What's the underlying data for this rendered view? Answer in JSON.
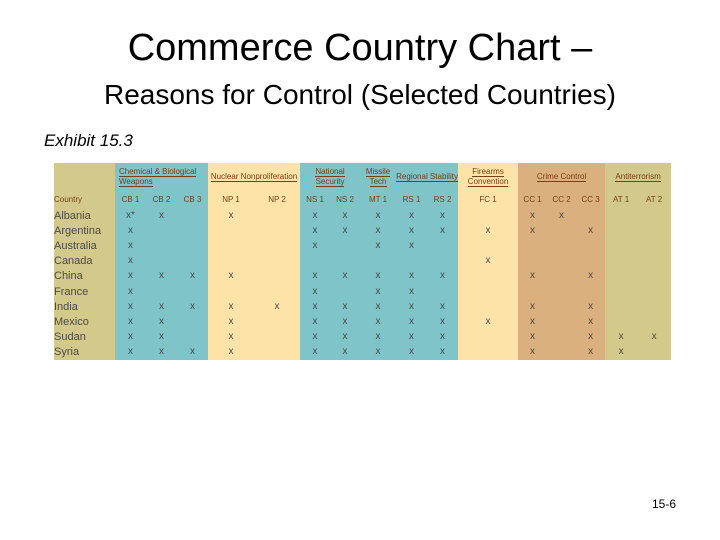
{
  "slide": {
    "title": "Commerce Country Chart –",
    "subtitle": "Reasons for Control (Selected Countries)",
    "exhibit": "Exhibit 15.3",
    "page_number": "15-6"
  },
  "table": {
    "groups": [
      {
        "label": "",
        "span": 1
      },
      {
        "label": "Chemical & Biological Weapons",
        "span": 3
      },
      {
        "label": "Nuclear Nonproliferation",
        "span": 2
      },
      {
        "label": "National Security",
        "span": 2
      },
      {
        "label": "Missile Tech",
        "span": 1
      },
      {
        "label": "Regional Stability",
        "span": 2
      },
      {
        "label": "Firearms Convention",
        "span": 1
      },
      {
        "label": "Crime Control",
        "span": 3
      },
      {
        "label": "Antiterrorism",
        "span": 2
      }
    ],
    "columns": [
      "Country",
      "CB 1",
      "CB 2",
      "CB 3",
      "NP 1",
      "NP 2",
      "NS 1",
      "NS 2",
      "MT 1",
      "RS 1",
      "RS 2",
      "FC 1",
      "CC 1",
      "CC 2",
      "CC 3",
      "AT 1",
      "AT 2"
    ],
    "rows": [
      {
        "country": "Albania",
        "cells": [
          "x*",
          "x",
          "",
          "x",
          "",
          "x",
          "x",
          "x",
          "x",
          "x",
          "",
          "x",
          "x",
          "",
          "",
          ""
        ]
      },
      {
        "country": "Argentina",
        "cells": [
          "x",
          "",
          "",
          "",
          "",
          "x",
          "x",
          "x",
          "x",
          "x",
          "x",
          "x",
          "",
          "x",
          "",
          ""
        ]
      },
      {
        "country": "Australia",
        "cells": [
          "x",
          "",
          "",
          "",
          "",
          "x",
          "",
          "x",
          "x",
          "",
          "",
          "",
          "",
          "",
          "",
          ""
        ]
      },
      {
        "country": "Canada",
        "cells": [
          "x",
          "",
          "",
          "",
          "",
          "",
          "",
          "",
          "",
          "",
          "x",
          "",
          "",
          "",
          "",
          ""
        ]
      },
      {
        "country": "China",
        "cells": [
          "x",
          "x",
          "x",
          "x",
          "",
          "x",
          "x",
          "x",
          "x",
          "x",
          "",
          "x",
          "",
          "x",
          "",
          ""
        ]
      },
      {
        "country": "France",
        "cells": [
          "x",
          "",
          "",
          "",
          "",
          "x",
          "",
          "x",
          "x",
          "",
          "",
          "",
          "",
          "",
          "",
          ""
        ]
      },
      {
        "country": "India",
        "cells": [
          "x",
          "x",
          "x",
          "x",
          "x",
          "x",
          "x",
          "x",
          "x",
          "x",
          "",
          "x",
          "",
          "x",
          "",
          ""
        ]
      },
      {
        "country": "Mexico",
        "cells": [
          "x",
          "x",
          "",
          "x",
          "",
          "x",
          "x",
          "x",
          "x",
          "x",
          "x",
          "x",
          "",
          "x",
          "",
          ""
        ]
      },
      {
        "country": "Sudan",
        "cells": [
          "x",
          "x",
          "",
          "x",
          "",
          "x",
          "x",
          "x",
          "x",
          "x",
          "",
          "x",
          "",
          "x",
          "x",
          "x"
        ]
      },
      {
        "country": "Syria",
        "cells": [
          "x",
          "x",
          "x",
          "x",
          "",
          "x",
          "x",
          "x",
          "x",
          "x",
          "",
          "x",
          "",
          "x",
          "x",
          ""
        ]
      }
    ]
  }
}
